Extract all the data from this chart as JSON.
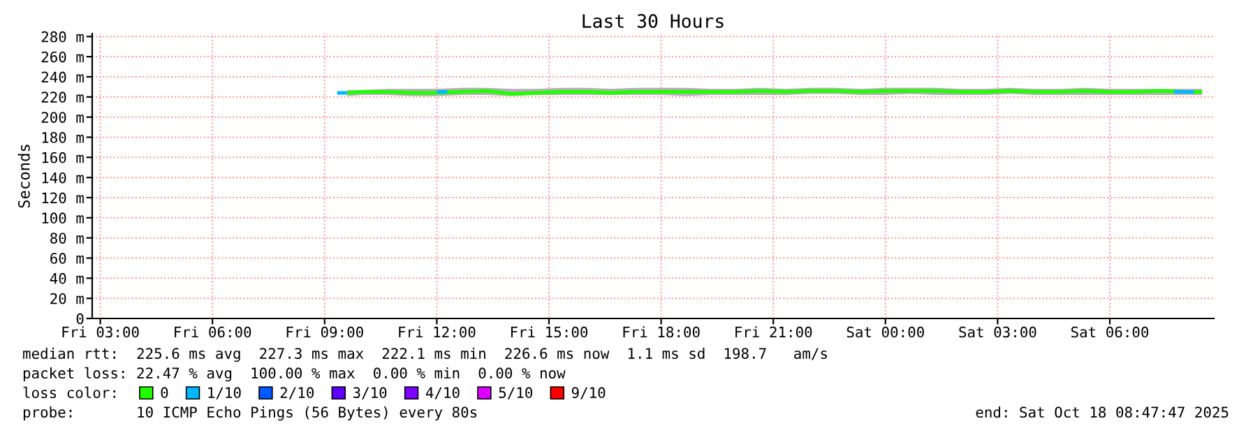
{
  "chart_data": {
    "type": "line",
    "title": "Last 30 Hours",
    "ylabel": "Seconds",
    "xlim": [
      "2025-10-17T02:47",
      "2025-10-18T08:47"
    ],
    "xticks": [
      {
        "value": "2025-10-17T03:00",
        "label": "Fri 03:00"
      },
      {
        "value": "2025-10-17T06:00",
        "label": "Fri 06:00"
      },
      {
        "value": "2025-10-17T09:00",
        "label": "Fri 09:00"
      },
      {
        "value": "2025-10-17T12:00",
        "label": "Fri 12:00"
      },
      {
        "value": "2025-10-17T15:00",
        "label": "Fri 15:00"
      },
      {
        "value": "2025-10-17T18:00",
        "label": "Fri 18:00"
      },
      {
        "value": "2025-10-17T21:00",
        "label": "Fri 21:00"
      },
      {
        "value": "2025-10-18T00:00",
        "label": "Sat 00:00"
      },
      {
        "value": "2025-10-18T03:00",
        "label": "Sat 03:00"
      },
      {
        "value": "2025-10-18T06:00",
        "label": "Sat 06:00"
      }
    ],
    "ylim": [
      0,
      283
    ],
    "yticks": [
      0,
      {
        "value": 20,
        "label": "20 m"
      },
      {
        "value": 40,
        "label": "40 m"
      },
      {
        "value": 60,
        "label": "60 m"
      },
      {
        "value": 80,
        "label": "80 m"
      },
      {
        "value": 100,
        "label": "100 m"
      },
      {
        "value": 120,
        "label": "120 m"
      },
      {
        "value": 140,
        "label": "140 m"
      },
      {
        "value": 160,
        "label": "160 m"
      },
      {
        "value": 180,
        "label": "180 m"
      },
      {
        "value": 200,
        "label": "200 m"
      },
      {
        "value": 220,
        "label": "220 m"
      },
      {
        "value": 240,
        "label": "240 m"
      },
      {
        "value": 260,
        "label": "260 m"
      },
      {
        "value": 280,
        "label": "280 m"
      }
    ],
    "grid": true,
    "legend": "bottom",
    "legend_title": "loss color:",
    "series": [
      {
        "name": "0",
        "color": "#20ff00",
        "x": [
          "2025-10-17T09:36",
          "2025-10-17T10:00",
          "2025-10-17T10:40",
          "2025-10-17T11:20",
          "2025-10-17T12:00",
          "2025-10-17T12:40",
          "2025-10-17T13:20",
          "2025-10-17T14:00",
          "2025-10-17T14:40",
          "2025-10-17T15:20",
          "2025-10-17T16:00",
          "2025-10-17T16:40",
          "2025-10-17T17:20",
          "2025-10-17T18:00",
          "2025-10-17T18:40",
          "2025-10-17T19:20",
          "2025-10-17T20:00",
          "2025-10-17T20:40",
          "2025-10-17T21:20",
          "2025-10-17T22:00",
          "2025-10-17T22:40",
          "2025-10-17T23:20",
          "2025-10-18T00:00",
          "2025-10-18T00:40",
          "2025-10-18T01:20",
          "2025-10-18T02:00",
          "2025-10-18T02:40",
          "2025-10-18T03:20",
          "2025-10-18T04:00",
          "2025-10-18T04:40",
          "2025-10-18T05:20",
          "2025-10-18T06:00",
          "2025-10-18T06:40",
          "2025-10-18T07:20",
          "2025-10-18T08:00",
          "2025-10-18T08:28"
        ],
        "values": [
          224,
          225,
          225,
          224,
          224,
          225,
          226,
          223,
          224,
          225,
          225,
          224,
          225,
          225,
          225,
          225,
          225,
          226,
          225,
          226,
          226,
          225,
          226,
          226,
          226,
          225,
          225,
          226,
          225,
          225,
          226,
          225,
          225,
          226,
          225,
          225
        ],
        "lower": [
          221,
          222,
          222,
          221,
          221,
          222,
          222,
          221,
          222,
          222,
          222,
          222,
          222,
          222,
          221,
          222,
          222,
          222,
          222,
          223,
          223,
          222,
          222,
          223,
          222,
          222,
          222,
          223,
          222,
          222,
          222,
          222,
          222,
          222,
          222,
          222
        ],
        "upper": [
          227,
          227,
          228,
          228,
          228,
          229,
          229,
          228,
          228,
          229,
          229,
          228,
          229,
          229,
          229,
          228,
          228,
          229,
          228,
          229,
          229,
          228,
          229,
          229,
          229,
          228,
          228,
          229,
          228,
          228,
          229,
          228,
          228,
          228,
          228,
          228
        ]
      },
      {
        "name": "1/10",
        "color": "#00b8ff",
        "x": [
          "2025-10-17T09:20",
          "2025-10-17T09:36",
          "2025-10-17T10:00",
          "2025-10-17T12:00",
          "2025-10-17T12:17",
          "2025-10-18T07:00",
          "2025-10-18T07:43",
          "2025-10-18T08:15"
        ],
        "values": [
          224,
          224,
          null,
          225,
          225,
          null,
          225,
          225
        ]
      },
      {
        "name": "2/10",
        "color": "#0059ff"
      },
      {
        "name": "3/10",
        "color": "#5e00ff"
      },
      {
        "name": "4/10",
        "color": "#7e00ff"
      },
      {
        "name": "5/10",
        "color": "#dd00ff"
      },
      {
        "name": "9/10",
        "color": "#ff0000"
      }
    ],
    "annotations": [
      "median rtt:  225.6 ms avg  227.3 ms max  222.1 ms min  226.6 ms now  1.1 ms sd  198.7   am/s",
      "packet loss: 22.47 % avg  100.00 % max  0.00 % min  0.00 % now",
      "probe:       10 ICMP Echo Pings (56 Bytes) every 80s",
      "end: Sat Oct 18 08:47:47 2025"
    ]
  }
}
